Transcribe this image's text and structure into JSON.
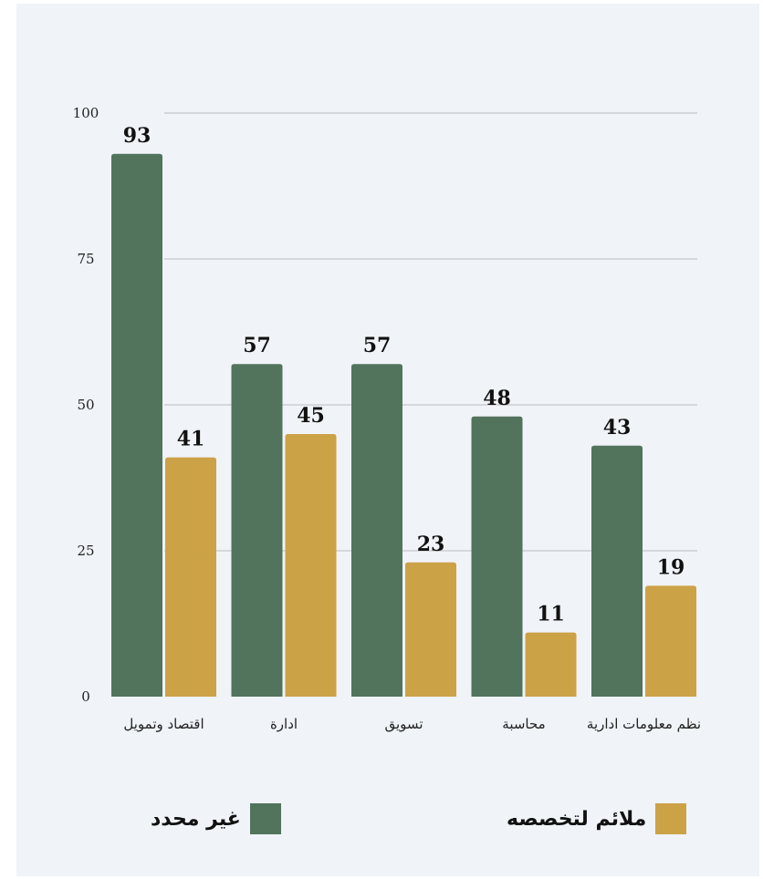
{
  "chart_data": {
    "type": "bar",
    "categories": [
      "اقتصاد وتمويل",
      "ادارة",
      "تسويق",
      "محاسبة",
      "نظم معلومات ادارية"
    ],
    "series": [
      {
        "name": "غير محدد",
        "color": "#52735c",
        "values": [
          93,
          57,
          57,
          48,
          43
        ]
      },
      {
        "name": "ملائم لتخصصه",
        "color": "#cca247",
        "values": [
          41,
          45,
          23,
          11,
          19
        ]
      }
    ],
    "ylim": [
      0,
      100
    ],
    "yticks": [
      0,
      25,
      50,
      75,
      100
    ],
    "grid": true,
    "legend": "bottom"
  }
}
